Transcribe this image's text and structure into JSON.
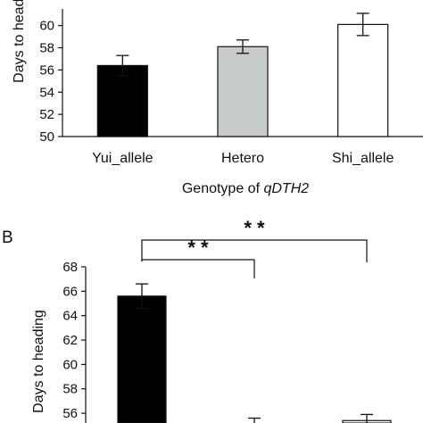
{
  "chart_data": [
    {
      "type": "bar",
      "panel": "",
      "categories": [
        "Yui_allele",
        "Hetero",
        "Shi_allele"
      ],
      "values": [
        56.4,
        58.1,
        60.1
      ],
      "errors": [
        0.9,
        0.6,
        1.0
      ],
      "colors": [
        "#000000",
        "#c8cdc9",
        "#ffffff"
      ],
      "ylabel": "Days to heading",
      "xlabel_prefix": "Genotype of ",
      "xlabel_gene": "qDTH2",
      "yticks": [
        "50",
        "52",
        "54",
        "56",
        "58",
        "60"
      ],
      "ylim": [
        50,
        61.5
      ]
    },
    {
      "type": "bar",
      "panel": "B",
      "categories": [
        "",
        "",
        ""
      ],
      "values": [
        65.6,
        55.2,
        55.4
      ],
      "errors": [
        1.0,
        0.4,
        0.5
      ],
      "colors": [
        "#000000",
        "#c8cdc9",
        "#ffffff"
      ],
      "ylabel": "Days to heading",
      "yticks": [
        "56",
        "58",
        "60",
        "62",
        "64",
        "66",
        "68"
      ],
      "ylim": [
        55.2,
        68
      ],
      "significance": [
        {
          "from": 0,
          "to": 1,
          "label": "* *"
        },
        {
          "from": 0,
          "to": 2,
          "label": "* *"
        }
      ]
    }
  ]
}
